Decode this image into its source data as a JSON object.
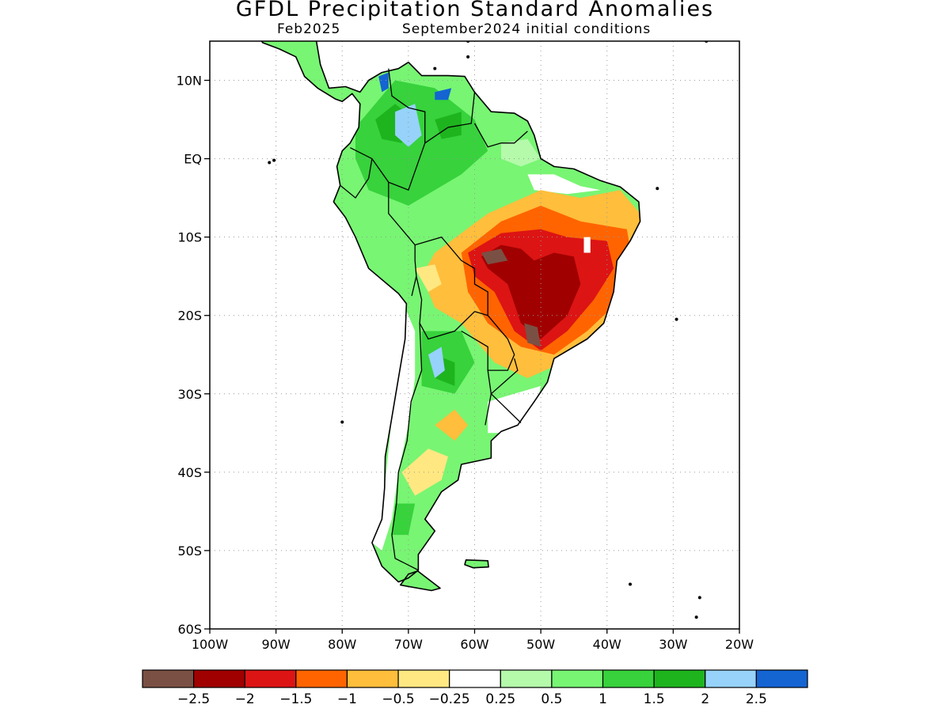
{
  "title": "GFDL Precipitation Standard Anomalies",
  "subtitle_left": "Feb2025",
  "subtitle_right": "September2024 initial conditions",
  "axes": {
    "lon_range": [
      -100,
      -20
    ],
    "lat_range": [
      -60,
      15
    ],
    "lat_ticks": [
      {
        "value": 10,
        "label": "10N"
      },
      {
        "value": 0,
        "label": "EQ"
      },
      {
        "value": -10,
        "label": "10S"
      },
      {
        "value": -20,
        "label": "20S"
      },
      {
        "value": -30,
        "label": "30S"
      },
      {
        "value": -40,
        "label": "40S"
      },
      {
        "value": -50,
        "label": "50S"
      },
      {
        "value": -60,
        "label": "60S"
      }
    ],
    "lon_ticks": [
      {
        "value": -100,
        "label": "100W"
      },
      {
        "value": -90,
        "label": "90W"
      },
      {
        "value": -80,
        "label": "80W"
      },
      {
        "value": -70,
        "label": "70W"
      },
      {
        "value": -60,
        "label": "60W"
      },
      {
        "value": -50,
        "label": "50W"
      },
      {
        "value": -40,
        "label": "40W"
      },
      {
        "value": -30,
        "label": "30W"
      },
      {
        "value": -20,
        "label": "20W"
      }
    ],
    "grid": "dotted"
  },
  "colorbar": {
    "colors": [
      "#7b5044",
      "#a00000",
      "#dc1414",
      "#ff6400",
      "#ffbe3c",
      "#ffe882",
      "#ffffff",
      "#b4faaa",
      "#78f573",
      "#37d23c",
      "#1eb41e",
      "#96d2fa",
      "#1464d2"
    ],
    "labels": [
      "−2.5",
      "−2",
      "−1.5",
      "−1",
      "−0.5",
      "−0.25",
      "0.25",
      "0.5",
      "1",
      "1.5",
      "2",
      "2.5"
    ]
  },
  "anomaly_regions": [
    {
      "level": "−1 to −0.5",
      "color": "#ffbe3c",
      "points": [
        [
          -66,
          -12
        ],
        [
          -58,
          -7
        ],
        [
          -50,
          -4
        ],
        [
          -44,
          -5
        ],
        [
          -38,
          -4
        ],
        [
          -34,
          -8
        ],
        [
          -36,
          -14
        ],
        [
          -38,
          -20
        ],
        [
          -42,
          -23
        ],
        [
          -48,
          -26.5
        ],
        [
          -52,
          -28
        ],
        [
          -57,
          -26
        ],
        [
          -62,
          -21
        ],
        [
          -66,
          -19
        ],
        [
          -68,
          -15
        ]
      ]
    },
    {
      "level": "−1.5 to −1",
      "color": "#ff6400",
      "points": [
        [
          -62,
          -12
        ],
        [
          -56,
          -8
        ],
        [
          -50,
          -6
        ],
        [
          -44,
          -8
        ],
        [
          -37,
          -9
        ],
        [
          -36,
          -14
        ],
        [
          -38,
          -18
        ],
        [
          -43,
          -22
        ],
        [
          -48,
          -25
        ],
        [
          -53,
          -24
        ],
        [
          -58,
          -21
        ],
        [
          -61,
          -17
        ]
      ]
    },
    {
      "level": "−2 to −1.5",
      "color": "#dc1414",
      "points": [
        [
          -61,
          -12
        ],
        [
          -56,
          -9.5
        ],
        [
          -50,
          -9
        ],
        [
          -46,
          -10
        ],
        [
          -40,
          -10.5
        ],
        [
          -39,
          -14
        ],
        [
          -42,
          -18
        ],
        [
          -46,
          -22
        ],
        [
          -50,
          -24.5
        ],
        [
          -54,
          -22
        ],
        [
          -57,
          -17
        ],
        [
          -60,
          -15
        ]
      ]
    },
    {
      "level": "−2.5 to −2",
      "color": "#a00000",
      "points": [
        [
          -59,
          -12.5
        ],
        [
          -56,
          -11
        ],
        [
          -53,
          -11.5
        ],
        [
          -51,
          -13
        ],
        [
          -48,
          -12
        ],
        [
          -45,
          -12.5
        ],
        [
          -44,
          -16
        ],
        [
          -46,
          -20
        ],
        [
          -50,
          -23
        ],
        [
          -53,
          -21
        ],
        [
          -55,
          -16
        ],
        [
          -58,
          -14
        ]
      ]
    },
    {
      "level": "< −2.5",
      "color": "#7b5044",
      "points": [
        [
          -59,
          -12
        ],
        [
          -56,
          -11.5
        ],
        [
          -55,
          -13
        ],
        [
          -58,
          -13.5
        ]
      ]
    },
    {
      "level": "< −2.5",
      "color": "#7b5044",
      "points": [
        [
          -52.5,
          -21
        ],
        [
          -50.5,
          -21.5
        ],
        [
          -50,
          -24
        ],
        [
          -52,
          -23.5
        ]
      ]
    },
    {
      "level": "−0.5 to −0.25",
      "color": "#ffe882",
      "points": [
        [
          -69,
          -14
        ],
        [
          -66,
          -13.5
        ],
        [
          -65,
          -16
        ],
        [
          -67,
          -17
        ]
      ]
    },
    {
      "level": "−0.5 to −0.25",
      "color": "#ffe882",
      "points": [
        [
          -71,
          -40
        ],
        [
          -67,
          -37
        ],
        [
          -64,
          -38
        ],
        [
          -65,
          -41
        ],
        [
          -69,
          -43
        ]
      ]
    },
    {
      "level": "−1 to −0.5",
      "color": "#ffbe3c",
      "points": [
        [
          -66,
          -34
        ],
        [
          -63,
          -32
        ],
        [
          -61,
          -34
        ],
        [
          -63,
          -36
        ]
      ]
    },
    {
      "level": "2 to 2.5",
      "color": "#96d2fa",
      "points": [
        [
          -72,
          6
        ],
        [
          -69,
          7
        ],
        [
          -68,
          3
        ],
        [
          -70,
          1.5
        ],
        [
          -72,
          3
        ]
      ]
    },
    {
      "level": "> 2.5",
      "color": "#1464d2",
      "points": [
        [
          -74.5,
          10.5
        ],
        [
          -73,
          11
        ],
        [
          -73,
          9
        ],
        [
          -74,
          8.5
        ]
      ]
    },
    {
      "level": "> 2.5",
      "color": "#1464d2",
      "points": [
        [
          -66,
          8.5
        ],
        [
          -63.5,
          9
        ],
        [
          -64,
          7.5
        ],
        [
          -66,
          7.5
        ]
      ]
    },
    {
      "level": "2 to 2.5",
      "color": "#96d2fa",
      "points": [
        [
          -67,
          -25
        ],
        [
          -65,
          -24
        ],
        [
          -64.5,
          -27
        ],
        [
          -66,
          -28
        ]
      ]
    }
  ],
  "missing_regions": [
    {
      "points": [
        [
          -43.5,
          -10
        ],
        [
          -42.5,
          -10
        ],
        [
          -42.5,
          -12
        ],
        [
          -43.5,
          -12
        ]
      ]
    }
  ]
}
